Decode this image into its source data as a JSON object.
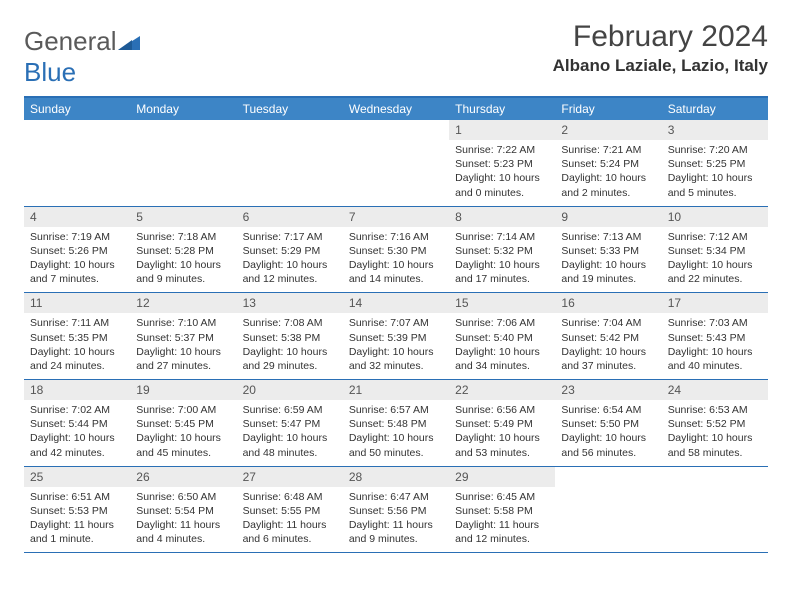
{
  "logo": {
    "text1": "General",
    "text2": "Blue"
  },
  "title": "February 2024",
  "location": "Albano Laziale, Lazio, Italy",
  "weekday_labels": [
    "Sunday",
    "Monday",
    "Tuesday",
    "Wednesday",
    "Thursday",
    "Friday",
    "Saturday"
  ],
  "colors": {
    "accent": "#2a6fb5",
    "header_bg": "#3d85c6",
    "daynum_bg": "#ececec",
    "text": "#333333",
    "logo_gray": "#5a5a5a"
  },
  "weeks": [
    [
      null,
      null,
      null,
      null,
      {
        "n": "1",
        "sunrise": "7:22 AM",
        "sunset": "5:23 PM",
        "daylight": "10 hours and 0 minutes."
      },
      {
        "n": "2",
        "sunrise": "7:21 AM",
        "sunset": "5:24 PM",
        "daylight": "10 hours and 2 minutes."
      },
      {
        "n": "3",
        "sunrise": "7:20 AM",
        "sunset": "5:25 PM",
        "daylight": "10 hours and 5 minutes."
      }
    ],
    [
      {
        "n": "4",
        "sunrise": "7:19 AM",
        "sunset": "5:26 PM",
        "daylight": "10 hours and 7 minutes."
      },
      {
        "n": "5",
        "sunrise": "7:18 AM",
        "sunset": "5:28 PM",
        "daylight": "10 hours and 9 minutes."
      },
      {
        "n": "6",
        "sunrise": "7:17 AM",
        "sunset": "5:29 PM",
        "daylight": "10 hours and 12 minutes."
      },
      {
        "n": "7",
        "sunrise": "7:16 AM",
        "sunset": "5:30 PM",
        "daylight": "10 hours and 14 minutes."
      },
      {
        "n": "8",
        "sunrise": "7:14 AM",
        "sunset": "5:32 PM",
        "daylight": "10 hours and 17 minutes."
      },
      {
        "n": "9",
        "sunrise": "7:13 AM",
        "sunset": "5:33 PM",
        "daylight": "10 hours and 19 minutes."
      },
      {
        "n": "10",
        "sunrise": "7:12 AM",
        "sunset": "5:34 PM",
        "daylight": "10 hours and 22 minutes."
      }
    ],
    [
      {
        "n": "11",
        "sunrise": "7:11 AM",
        "sunset": "5:35 PM",
        "daylight": "10 hours and 24 minutes."
      },
      {
        "n": "12",
        "sunrise": "7:10 AM",
        "sunset": "5:37 PM",
        "daylight": "10 hours and 27 minutes."
      },
      {
        "n": "13",
        "sunrise": "7:08 AM",
        "sunset": "5:38 PM",
        "daylight": "10 hours and 29 minutes."
      },
      {
        "n": "14",
        "sunrise": "7:07 AM",
        "sunset": "5:39 PM",
        "daylight": "10 hours and 32 minutes."
      },
      {
        "n": "15",
        "sunrise": "7:06 AM",
        "sunset": "5:40 PM",
        "daylight": "10 hours and 34 minutes."
      },
      {
        "n": "16",
        "sunrise": "7:04 AM",
        "sunset": "5:42 PM",
        "daylight": "10 hours and 37 minutes."
      },
      {
        "n": "17",
        "sunrise": "7:03 AM",
        "sunset": "5:43 PM",
        "daylight": "10 hours and 40 minutes."
      }
    ],
    [
      {
        "n": "18",
        "sunrise": "7:02 AM",
        "sunset": "5:44 PM",
        "daylight": "10 hours and 42 minutes."
      },
      {
        "n": "19",
        "sunrise": "7:00 AM",
        "sunset": "5:45 PM",
        "daylight": "10 hours and 45 minutes."
      },
      {
        "n": "20",
        "sunrise": "6:59 AM",
        "sunset": "5:47 PM",
        "daylight": "10 hours and 48 minutes."
      },
      {
        "n": "21",
        "sunrise": "6:57 AM",
        "sunset": "5:48 PM",
        "daylight": "10 hours and 50 minutes."
      },
      {
        "n": "22",
        "sunrise": "6:56 AM",
        "sunset": "5:49 PM",
        "daylight": "10 hours and 53 minutes."
      },
      {
        "n": "23",
        "sunrise": "6:54 AM",
        "sunset": "5:50 PM",
        "daylight": "10 hours and 56 minutes."
      },
      {
        "n": "24",
        "sunrise": "6:53 AM",
        "sunset": "5:52 PM",
        "daylight": "10 hours and 58 minutes."
      }
    ],
    [
      {
        "n": "25",
        "sunrise": "6:51 AM",
        "sunset": "5:53 PM",
        "daylight": "11 hours and 1 minute."
      },
      {
        "n": "26",
        "sunrise": "6:50 AM",
        "sunset": "5:54 PM",
        "daylight": "11 hours and 4 minutes."
      },
      {
        "n": "27",
        "sunrise": "6:48 AM",
        "sunset": "5:55 PM",
        "daylight": "11 hours and 6 minutes."
      },
      {
        "n": "28",
        "sunrise": "6:47 AM",
        "sunset": "5:56 PM",
        "daylight": "11 hours and 9 minutes."
      },
      {
        "n": "29",
        "sunrise": "6:45 AM",
        "sunset": "5:58 PM",
        "daylight": "11 hours and 12 minutes."
      },
      null,
      null
    ]
  ],
  "labels": {
    "sunrise_prefix": "Sunrise: ",
    "sunset_prefix": "Sunset: ",
    "daylight_prefix": "Daylight: "
  }
}
